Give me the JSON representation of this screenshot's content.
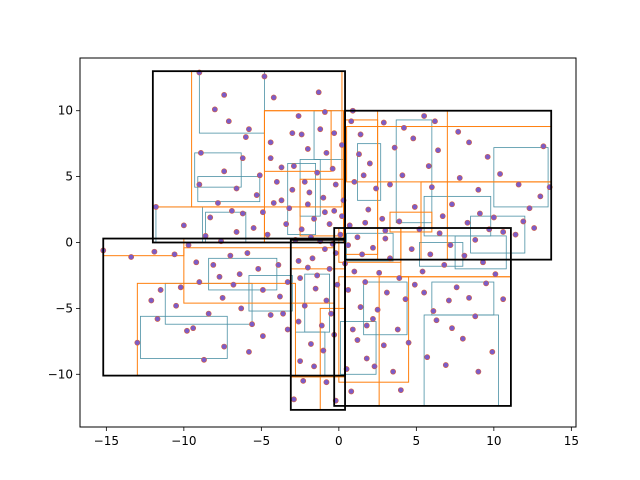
{
  "chart_data": {
    "type": "scatter",
    "title": "",
    "xlabel": "",
    "ylabel": "",
    "xlim": [
      -16.7,
      15.3
    ],
    "ylim": [
      -14.0,
      14.0
    ],
    "xticks": [
      -15,
      -10,
      -5,
      0,
      5,
      10,
      15
    ],
    "yticks": [
      -10,
      -5,
      0,
      5,
      10
    ],
    "grid": false,
    "legend": "none",
    "colors": {
      "points": "#7b5cc8",
      "point_edge": "#d65f3d",
      "level2_boxes": "#ff7f0e",
      "level3_boxes": "#4a90a4",
      "level1_boxes": "#000000"
    },
    "level1_boxes": [
      {
        "x0": -12.0,
        "x1": 0.4,
        "y0": 0.0,
        "y1": 13.0
      },
      {
        "x0": 0.4,
        "x1": 13.7,
        "y0": -1.3,
        "y1": 10.0
      },
      {
        "x0": -15.2,
        "x1": 0.4,
        "y0": -10.1,
        "y1": 0.3
      },
      {
        "x0": -3.1,
        "x1": 0.4,
        "y0": -12.7,
        "y1": 0.2
      },
      {
        "x0": -0.3,
        "x1": 11.1,
        "y0": -12.4,
        "y1": 1.1
      }
    ],
    "level2_boxes": [
      {
        "x0": -9.5,
        "x1": 0.2,
        "y0": 2.7,
        "y1": 13.0
      },
      {
        "x0": -12.0,
        "x1": -4.8,
        "y0": 0.0,
        "y1": 2.7
      },
      {
        "x0": -4.8,
        "x1": 0.3,
        "y0": 0.0,
        "y1": 10.0
      },
      {
        "x0": -4.8,
        "x1": -0.5,
        "y0": 5.4,
        "y1": 10.0
      },
      {
        "x0": -2.5,
        "x1": 0.3,
        "y0": 0.5,
        "y1": 4.8
      },
      {
        "x0": 0.5,
        "x1": 13.7,
        "y0": 4.6,
        "y1": 8.8
      },
      {
        "x0": 0.4,
        "x1": 2.5,
        "y0": -0.9,
        "y1": 9.3
      },
      {
        "x0": 2.5,
        "x1": 7.0,
        "y0": -1.3,
        "y1": 10.0
      },
      {
        "x0": 5.3,
        "x1": 13.7,
        "y0": -1.3,
        "y1": 4.6
      },
      {
        "x0": 3.3,
        "x1": 6.0,
        "y0": 0.8,
        "y1": 2.3
      },
      {
        "x0": -13.0,
        "x1": -2.8,
        "y0": -10.1,
        "y1": -3.1
      },
      {
        "x0": -10.0,
        "x1": -0.3,
        "y0": -4.6,
        "y1": -0.4
      },
      {
        "x0": -15.2,
        "x1": -10.0,
        "y0": -1.0,
        "y1": 0.3
      },
      {
        "x0": -3.1,
        "x1": 0.4,
        "y0": -10.2,
        "y1": -2.0
      },
      {
        "x0": -1.2,
        "x1": 0.4,
        "y0": -12.7,
        "y1": -5.0
      },
      {
        "x0": 0.0,
        "x1": 4.5,
        "y0": -10.6,
        "y1": -2.6
      },
      {
        "x0": 2.6,
        "x1": 11.1,
        "y0": -12.4,
        "y1": -2.6
      },
      {
        "x0": 4.0,
        "x1": 11.1,
        "y0": -2.6,
        "y1": 1.1
      },
      {
        "x0": 0.0,
        "x1": 4.0,
        "y0": -1.5,
        "y1": 1.1
      }
    ],
    "level3_boxes": [
      {
        "x0": -9.0,
        "x1": -4.8,
        "y0": 8.3,
        "y1": 13.0
      },
      {
        "x0": -9.3,
        "x1": -6.3,
        "y0": 4.2,
        "y1": 6.8
      },
      {
        "x0": -9.1,
        "x1": -5.1,
        "y0": 3.1,
        "y1": 5.0
      },
      {
        "x0": -8.6,
        "x1": -6.0,
        "y0": 0.0,
        "y1": 2.3
      },
      {
        "x0": -11.8,
        "x1": -8.8,
        "y0": 0.0,
        "y1": 2.7
      },
      {
        "x0": -3.3,
        "x1": -1.5,
        "y0": 0.6,
        "y1": 6.0
      },
      {
        "x0": -2.5,
        "x1": -1.2,
        "y0": 2.0,
        "y1": 6.3
      },
      {
        "x0": -1.6,
        "x1": 0.3,
        "y0": 6.3,
        "y1": 10.0
      },
      {
        "x0": 3.7,
        "x1": 6.0,
        "y0": 1.5,
        "y1": 9.3
      },
      {
        "x0": 10.0,
        "x1": 13.5,
        "y0": 2.7,
        "y1": 7.2
      },
      {
        "x0": 5.5,
        "x1": 9.8,
        "y0": 0.5,
        "y1": 3.5
      },
      {
        "x0": 8.5,
        "x1": 12.0,
        "y0": -0.8,
        "y1": 2.0
      },
      {
        "x0": 1.2,
        "x1": 2.7,
        "y0": 3.2,
        "y1": 7.5
      },
      {
        "x0": -12.8,
        "x1": -7.2,
        "y0": -8.8,
        "y1": -5.6
      },
      {
        "x0": -11.2,
        "x1": -5.6,
        "y0": -6.2,
        "y1": -3.1
      },
      {
        "x0": -8.4,
        "x1": -4.0,
        "y0": -3.6,
        "y1": -1.2
      },
      {
        "x0": -5.8,
        "x1": -3.0,
        "y0": -5.2,
        "y1": -2.5
      },
      {
        "x0": -2.8,
        "x1": -0.9,
        "y0": -10.2,
        "y1": -6.8
      },
      {
        "x0": -2.2,
        "x1": -0.6,
        "y0": -6.8,
        "y1": -2.4
      },
      {
        "x0": 0.1,
        "x1": 2.4,
        "y0": -10.0,
        "y1": -6.0
      },
      {
        "x0": 1.6,
        "x1": 4.4,
        "y0": -7.0,
        "y1": -3.0
      },
      {
        "x0": 5.5,
        "x1": 10.3,
        "y0": -12.4,
        "y1": -5.5
      },
      {
        "x0": 6.0,
        "x1": 10.0,
        "y0": -5.5,
        "y1": -3.0
      },
      {
        "x0": 7.5,
        "x1": 10.8,
        "y0": -2.0,
        "y1": 0.5
      },
      {
        "x0": 5.2,
        "x1": 8.0,
        "y0": -1.8,
        "y1": 0.0
      },
      {
        "x0": 0.5,
        "x1": 3.5,
        "y0": -1.4,
        "y1": 0.7
      }
    ],
    "points": [
      [
        -9.0,
        12.9
      ],
      [
        -4.8,
        12.6
      ],
      [
        -8.0,
        10.1
      ],
      [
        -5.8,
        8.6
      ],
      [
        -7.1,
        9.2
      ],
      [
        -8.9,
        6.8
      ],
      [
        -6.2,
        6.4
      ],
      [
        -7.4,
        5.4
      ],
      [
        -9.0,
        4.4
      ],
      [
        -6.6,
        4.1
      ],
      [
        -5.3,
        3.6
      ],
      [
        -7.8,
        3.0
      ],
      [
        -6.9,
        2.4
      ],
      [
        -11.8,
        2.7
      ],
      [
        -10.0,
        1.3
      ],
      [
        -8.3,
        1.9
      ],
      [
        -8.6,
        0.5
      ],
      [
        -6.2,
        2.2
      ],
      [
        -5.5,
        1.1
      ],
      [
        -4.9,
        2.3
      ],
      [
        -4.0,
        4.6
      ],
      [
        -3.7,
        3.2
      ],
      [
        -3.4,
        1.4
      ],
      [
        -2.9,
        5.8
      ],
      [
        -2.2,
        4.6
      ],
      [
        -2.0,
        2.9
      ],
      [
        -1.6,
        1.8
      ],
      [
        -1.0,
        3.4
      ],
      [
        -0.8,
        6.8
      ],
      [
        -1.2,
        8.6
      ],
      [
        -0.9,
        9.9
      ],
      [
        -2.6,
        9.6
      ],
      [
        -3.0,
        8.3
      ],
      [
        -4.4,
        7.6
      ],
      [
        -4.4,
        6.4
      ],
      [
        -3.7,
        5.7
      ],
      [
        -4.2,
        3.0
      ],
      [
        -3.2,
        2.6
      ],
      [
        -2.4,
        1.0
      ],
      [
        -1.8,
        0.4
      ],
      [
        -0.6,
        1.4
      ],
      [
        -0.3,
        2.4
      ],
      [
        -0.2,
        4.4
      ],
      [
        -0.4,
        5.6
      ],
      [
        0.2,
        7.4
      ],
      [
        0.8,
        9.2
      ],
      [
        1.3,
        6.7
      ],
      [
        1.6,
        5.1
      ],
      [
        2.4,
        4.1
      ],
      [
        1.9,
        2.5
      ],
      [
        0.7,
        1.3
      ],
      [
        1.2,
        0.4
      ],
      [
        2.8,
        1.8
      ],
      [
        3.3,
        4.4
      ],
      [
        4.1,
        5.1
      ],
      [
        4.8,
        7.9
      ],
      [
        4.2,
        8.7
      ],
      [
        5.5,
        9.6
      ],
      [
        6.4,
        7.0
      ],
      [
        5.8,
        5.8
      ],
      [
        6.0,
        4.2
      ],
      [
        4.9,
        2.7
      ],
      [
        3.9,
        1.6
      ],
      [
        5.2,
        1.0
      ],
      [
        6.7,
        2.0
      ],
      [
        7.3,
        2.9
      ],
      [
        8.3,
        1.5
      ],
      [
        9.1,
        2.2
      ],
      [
        9.7,
        1.0
      ],
      [
        10.6,
        0.8
      ],
      [
        11.4,
        0.6
      ],
      [
        12.3,
        2.6
      ],
      [
        13.0,
        3.5
      ],
      [
        13.2,
        7.3
      ],
      [
        13.6,
        4.2
      ],
      [
        11.9,
        1.6
      ],
      [
        10.0,
        1.9
      ],
      [
        8.8,
        0.2
      ],
      [
        7.2,
        -0.2
      ],
      [
        6.5,
        0.7
      ],
      [
        3.0,
        0.9
      ],
      [
        2.2,
        -0.4
      ],
      [
        1.5,
        -0.9
      ],
      [
        0.6,
        -0.2
      ],
      [
        -0.2,
        -0.8
      ],
      [
        -0.9,
        -0.5
      ],
      [
        -1.7,
        -1.2
      ],
      [
        -2.6,
        -1.4
      ],
      [
        -3.9,
        -1.7
      ],
      [
        -5.2,
        -2.0
      ],
      [
        -6.4,
        -2.4
      ],
      [
        -7.7,
        -2.6
      ],
      [
        -9.0,
        -3.0
      ],
      [
        -10.2,
        -3.4
      ],
      [
        -11.5,
        -3.6
      ],
      [
        -13.0,
        -7.6
      ],
      [
        -11.7,
        -5.8
      ],
      [
        -10.5,
        -4.8
      ],
      [
        -9.8,
        -6.7
      ],
      [
        -8.4,
        -5.4
      ],
      [
        -7.5,
        -4.2
      ],
      [
        -6.3,
        -5.0
      ],
      [
        -5.6,
        -6.2
      ],
      [
        -4.4,
        -5.5
      ],
      [
        -3.8,
        -4.1
      ],
      [
        -3.3,
        -3.0
      ],
      [
        -2.5,
        -2.7
      ],
      [
        -1.5,
        -3.5
      ],
      [
        -0.8,
        -4.4
      ],
      [
        -1.1,
        -6.3
      ],
      [
        -1.8,
        -7.7
      ],
      [
        -2.5,
        -9.0
      ],
      [
        -0.8,
        -10.6
      ],
      [
        -0.2,
        -12.0
      ],
      [
        0.5,
        -9.6
      ],
      [
        1.2,
        -7.4
      ],
      [
        1.8,
        -6.3
      ],
      [
        2.5,
        -5.1
      ],
      [
        3.1,
        -3.8
      ],
      [
        3.9,
        -2.7
      ],
      [
        4.3,
        -4.3
      ],
      [
        5.5,
        -3.8
      ],
      [
        6.1,
        -5.2
      ],
      [
        7.1,
        -4.4
      ],
      [
        7.6,
        -3.4
      ],
      [
        8.4,
        -4.2
      ],
      [
        9.5,
        -3.1
      ],
      [
        10.1,
        -2.4
      ],
      [
        9.3,
        -1.5
      ],
      [
        8.1,
        -1.0
      ],
      [
        6.8,
        -1.7
      ],
      [
        5.9,
        -0.9
      ],
      [
        4.7,
        -0.5
      ],
      [
        5.4,
        -2.2
      ],
      [
        4.9,
        -3.2
      ],
      [
        6.3,
        -5.9
      ],
      [
        5.7,
        -8.7
      ],
      [
        7.3,
        -6.5
      ],
      [
        8.8,
        -5.6
      ],
      [
        9.9,
        -8.3
      ],
      [
        2.9,
        -7.8
      ],
      [
        3.5,
        -9.8
      ],
      [
        1.8,
        -8.8
      ],
      [
        0.8,
        -11.3
      ],
      [
        -2.9,
        -11.9
      ],
      [
        -1.6,
        -9.4
      ],
      [
        -3.3,
        -6.6
      ],
      [
        -4.9,
        -7.1
      ],
      [
        -5.8,
        -8.3
      ],
      [
        -7.4,
        -7.9
      ],
      [
        -8.7,
        -8.9
      ],
      [
        -9.4,
        -6.5
      ],
      [
        -12.1,
        -4.4
      ],
      [
        -15.2,
        -0.6
      ],
      [
        -13.4,
        -1.1
      ],
      [
        -11.9,
        -0.7
      ],
      [
        -10.6,
        -0.9
      ],
      [
        -9.2,
        -1.5
      ],
      [
        -7.0,
        -1.0
      ],
      [
        -5.9,
        -0.8
      ],
      [
        -4.6,
        0.6
      ],
      [
        -2.8,
        0.2
      ],
      [
        -1.2,
        0.1
      ],
      [
        -0.4,
        -0.1
      ],
      [
        0.1,
        0.6
      ],
      [
        0.4,
        -1.6
      ],
      [
        1.0,
        -2.2
      ],
      [
        1.7,
        -3.0
      ],
      [
        2.6,
        -2.3
      ],
      [
        3.3,
        -1.2
      ],
      [
        -0.6,
        -2.0
      ],
      [
        -1.4,
        -2.5
      ],
      [
        -2.0,
        -1.9
      ],
      [
        -0.1,
        -3.2
      ],
      [
        0.6,
        -3.6
      ],
      [
        -0.5,
        -5.4
      ],
      [
        -2.2,
        -4.8
      ],
      [
        -1.0,
        -8.2
      ],
      [
        -2.3,
        -10.5
      ],
      [
        1.4,
        -4.9
      ],
      [
        3.8,
        -6.6
      ],
      [
        2.3,
        -9.4
      ],
      [
        4.0,
        -11.2
      ],
      [
        -6.6,
        0.8
      ],
      [
        -7.6,
        0.1
      ],
      [
        -3.0,
        4.0
      ],
      [
        -1.4,
        5.3
      ],
      [
        0.3,
        3.2
      ],
      [
        1.0,
        4.6
      ],
      [
        2.0,
        6.0
      ],
      [
        3.6,
        7.2
      ],
      [
        2.9,
        9.1
      ],
      [
        1.4,
        8.2
      ],
      [
        0.9,
        10.0
      ],
      [
        -0.3,
        8.3
      ],
      [
        -2.0,
        7.1
      ],
      [
        -5.1,
        5.1
      ],
      [
        -6.0,
        8.0
      ],
      [
        -7.4,
        11.2
      ],
      [
        -4.2,
        11.0
      ],
      [
        -1.3,
        11.4
      ],
      [
        10.4,
        5.2
      ],
      [
        11.6,
        4.4
      ],
      [
        9.6,
        6.5
      ],
      [
        8.4,
        7.6
      ],
      [
        7.7,
        8.4
      ],
      [
        6.2,
        9.2
      ],
      [
        9.0,
        4.0
      ],
      [
        7.8,
        4.9
      ],
      [
        12.6,
        1.1
      ],
      [
        -9.7,
        -0.2
      ],
      [
        -8.1,
        -1.7
      ],
      [
        -6.8,
        -3.2
      ],
      [
        -4.9,
        -3.6
      ],
      [
        -3.6,
        -5.4
      ],
      [
        -2.6,
        -6.0
      ],
      [
        -0.3,
        -7.0
      ],
      [
        0.9,
        -6.6
      ],
      [
        2.2,
        -5.8
      ],
      [
        4.5,
        -7.6
      ],
      [
        6.9,
        -9.3
      ],
      [
        8.0,
        -7.3
      ],
      [
        9.0,
        -9.8
      ],
      [
        10.6,
        -4.3
      ],
      [
        3.0,
        0.3
      ],
      [
        1.7,
        1.5
      ],
      [
        0.2,
        2.0
      ],
      [
        -0.9,
        2.3
      ],
      [
        -1.9,
        3.8
      ],
      [
        -2.4,
        8.2
      ]
    ]
  }
}
